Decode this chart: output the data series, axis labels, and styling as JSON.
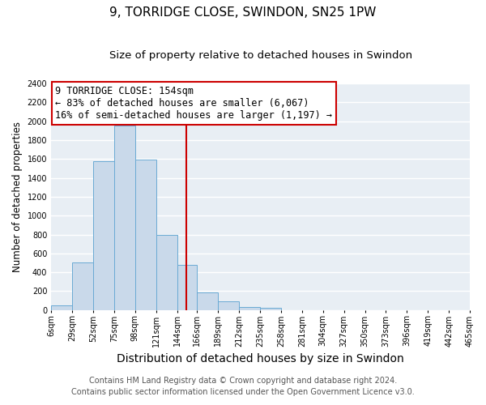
{
  "title": "9, TORRIDGE CLOSE, SWINDON, SN25 1PW",
  "subtitle": "Size of property relative to detached houses in Swindon",
  "xlabel": "Distribution of detached houses by size in Swindon",
  "ylabel": "Number of detached properties",
  "bar_edges": [
    6,
    29,
    52,
    75,
    98,
    121,
    144,
    166,
    189,
    212,
    235,
    258,
    281,
    304,
    327,
    350,
    373,
    396,
    419,
    442,
    465
  ],
  "bar_heights": [
    50,
    500,
    1575,
    1950,
    1590,
    800,
    480,
    185,
    90,
    35,
    20,
    0,
    0,
    0,
    0,
    0,
    0,
    0,
    0,
    0
  ],
  "bar_color": "#c9d9ea",
  "bar_edge_color": "#6aaad4",
  "vline_x": 154,
  "vline_color": "#cc0000",
  "annotation_title": "9 TORRIDGE CLOSE: 154sqm",
  "annotation_line1": "← 83% of detached houses are smaller (6,067)",
  "annotation_line2": "16% of semi-detached houses are larger (1,197) →",
  "annotation_box_facecolor": "#ffffff",
  "annotation_box_edgecolor": "#cc0000",
  "ylim": [
    0,
    2400
  ],
  "yticks": [
    0,
    200,
    400,
    600,
    800,
    1000,
    1200,
    1400,
    1600,
    1800,
    2000,
    2200,
    2400
  ],
  "tick_labels": [
    "6sqm",
    "29sqm",
    "52sqm",
    "75sqm",
    "98sqm",
    "121sqm",
    "144sqm",
    "166sqm",
    "189sqm",
    "212sqm",
    "235sqm",
    "258sqm",
    "281sqm",
    "304sqm",
    "327sqm",
    "350sqm",
    "373sqm",
    "396sqm",
    "419sqm",
    "442sqm",
    "465sqm"
  ],
  "footer1": "Contains HM Land Registry data © Crown copyright and database right 2024.",
  "footer2": "Contains public sector information licensed under the Open Government Licence v3.0.",
  "background_color": "#ffffff",
  "plot_bg_color": "#e8eef4",
  "grid_color": "#ffffff",
  "title_fontsize": 11,
  "subtitle_fontsize": 9.5,
  "xlabel_fontsize": 10,
  "ylabel_fontsize": 8.5,
  "tick_fontsize": 7,
  "footer_fontsize": 7,
  "ann_fontsize": 8.5
}
